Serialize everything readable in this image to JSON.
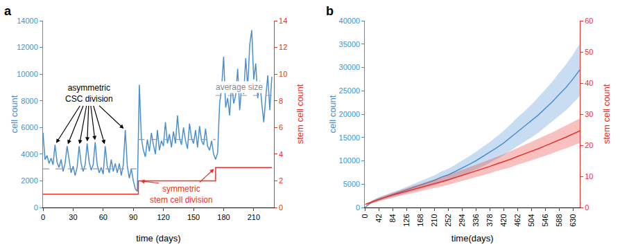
{
  "chart_data": [
    {
      "type": "line",
      "label": "a",
      "xlabel": "time (days)",
      "ylabel": "cell count",
      "y2label": "stem cell count",
      "xlim": [
        0,
        230
      ],
      "ylim": [
        0,
        14000
      ],
      "y2lim": [
        0,
        14
      ],
      "xticks": [
        0,
        30,
        60,
        90,
        120,
        150,
        180,
        210
      ],
      "yticks": [
        0,
        2000,
        4000,
        6000,
        8000,
        10000,
        12000,
        14000
      ],
      "y2ticks": [
        0,
        2,
        4,
        6,
        8,
        10,
        12,
        14
      ],
      "grid": false,
      "series": [
        {
          "axis": "y",
          "color": "#4a8fd0",
          "x": [
            0,
            2,
            4,
            6,
            8,
            10,
            12,
            14,
            16,
            18,
            20,
            22,
            24,
            26,
            28,
            30,
            32,
            34,
            36,
            38,
            40,
            42,
            44,
            46,
            48,
            50,
            52,
            54,
            56,
            58,
            60,
            62,
            64,
            66,
            68,
            70,
            72,
            74,
            76,
            78,
            80,
            82,
            84,
            86,
            88,
            90,
            92,
            94,
            96,
            98,
            100,
            102,
            104,
            106,
            108,
            110,
            112,
            114,
            116,
            118,
            120,
            122,
            124,
            126,
            128,
            130,
            132,
            134,
            136,
            138,
            140,
            142,
            144,
            146,
            148,
            150,
            152,
            154,
            156,
            158,
            160,
            162,
            164,
            166,
            168,
            170,
            172,
            174,
            176,
            178,
            180,
            182,
            184,
            186,
            188,
            190,
            192,
            194,
            196,
            198,
            200,
            202,
            204,
            206,
            208,
            210,
            212,
            214,
            216,
            218,
            220,
            222,
            224,
            226,
            228
          ],
          "values": [
            5600,
            3600,
            3900,
            3300,
            3700,
            3200,
            4700,
            3400,
            3000,
            3600,
            2700,
            3300,
            4600,
            3500,
            2600,
            3100,
            2400,
            3000,
            4600,
            3300,
            2700,
            3200,
            4800,
            3400,
            2800,
            3200,
            4900,
            3200,
            2600,
            3000,
            2500,
            4600,
            3100,
            2600,
            3600,
            2700,
            3300,
            2600,
            3300,
            2400,
            3200,
            5800,
            3100,
            2200,
            2900,
            2000,
            1400,
            1200,
            9200,
            5200,
            4300,
            3800,
            5100,
            4200,
            5600,
            4700,
            4000,
            5800,
            4300,
            5000,
            4600,
            6400,
            4800,
            5500,
            4500,
            5700,
            4800,
            6900,
            5200,
            4700,
            6000,
            5000,
            4400,
            6300,
            5200,
            4800,
            5800,
            4500,
            6100,
            5000,
            4700,
            5900,
            4600,
            4300,
            5000,
            4000,
            3600,
            4100,
            7800,
            9000,
            11300,
            7500,
            8200,
            6900,
            9400,
            7800,
            8400,
            10400,
            7300,
            9200,
            8500,
            11200,
            9000,
            12200,
            13300,
            9600,
            10800,
            8200,
            9500,
            7800,
            6400,
            8300,
            9900,
            7300,
            9800
          ]
        },
        {
          "axis": "y2",
          "color": "#e8312a",
          "line_style": "step",
          "x": [
            0,
            95,
            172,
            228
          ],
          "values": [
            1,
            2,
            3,
            3
          ]
        },
        {
          "axis": "y",
          "color": "#999999",
          "line_style": "dashed",
          "x": [
            0,
            95
          ],
          "values": [
            2900,
            2900
          ]
        },
        {
          "axis": "y",
          "color": "#999999",
          "line_style": "dashed",
          "x": [
            95,
            172
          ],
          "values": [
            5100,
            5100
          ]
        },
        {
          "axis": "y",
          "color": "#999999",
          "line_style": "dashed",
          "x": [
            172,
            228
          ],
          "values": [
            8400,
            8400
          ]
        }
      ],
      "annotations": [
        {
          "text": "asymmetric\nCSC division",
          "color": "#000000",
          "axis": "y",
          "points": [
            [
              12,
              4700
            ],
            [
              24,
              4600
            ],
            [
              36,
              4600
            ],
            [
              44,
              4800
            ],
            [
              52,
              4900
            ],
            [
              62,
              4600
            ],
            [
              82,
              5800
            ]
          ]
        },
        {
          "text": "symmetric\nstem cell division",
          "color": "#e8312a",
          "axis": "y2",
          "points": [
            [
              95,
              2
            ],
            [
              172,
              3
            ]
          ]
        },
        {
          "text": "average size",
          "color": "#888888",
          "axis": "y",
          "points": []
        }
      ]
    },
    {
      "type": "line",
      "label": "b",
      "xlabel": "time(days)",
      "ylabel": "cell count",
      "y2label": "stem cell count",
      "xlim": [
        0,
        651
      ],
      "ylim": [
        0,
        40000
      ],
      "y2lim": [
        0,
        60
      ],
      "xticks": [
        0,
        42,
        84,
        126,
        168,
        210,
        252,
        294,
        336,
        378,
        420,
        462,
        504,
        546,
        588,
        630
      ],
      "yticks": [
        0,
        5000,
        10000,
        15000,
        20000,
        25000,
        30000,
        35000,
        40000
      ],
      "y2ticks": [
        0,
        10,
        20,
        30,
        40,
        50,
        60
      ],
      "grid": false,
      "series": [
        {
          "axis": "y",
          "color": "#4a8fd0",
          "x": [
            0,
            21,
            42,
            63,
            84,
            105,
            126,
            147,
            168,
            189,
            210,
            231,
            252,
            273,
            294,
            315,
            336,
            357,
            378,
            399,
            420,
            441,
            462,
            483,
            504,
            525,
            546,
            567,
            588,
            609,
            630,
            651
          ],
          "values": [
            100,
            1200,
            1800,
            2300,
            2800,
            3200,
            3700,
            4300,
            4700,
            5200,
            5800,
            6500,
            7000,
            7700,
            8400,
            9200,
            10000,
            10900,
            11800,
            12800,
            13800,
            15000,
            16200,
            17300,
            18500,
            19800,
            21200,
            22600,
            24200,
            25700,
            27500,
            29500
          ],
          "lower": [
            0,
            900,
            1400,
            1800,
            2300,
            2600,
            3000,
            3500,
            3800,
            4200,
            4700,
            5300,
            5700,
            6300,
            6800,
            7500,
            8100,
            8800,
            9600,
            10400,
            11200,
            12200,
            13100,
            14000,
            15000,
            16000,
            17200,
            18300,
            19600,
            20800,
            22300,
            23900
          ],
          "upper": [
            200,
            1500,
            2200,
            2800,
            3300,
            3800,
            4400,
            5100,
            5600,
            6200,
            6900,
            7700,
            8300,
            9100,
            10000,
            10900,
            11900,
            13000,
            14000,
            15200,
            16400,
            17800,
            19300,
            20600,
            22000,
            23600,
            25200,
            26900,
            28800,
            30600,
            32700,
            35100
          ]
        },
        {
          "axis": "y2",
          "color": "#e8312a",
          "x": [
            0,
            21,
            42,
            63,
            84,
            105,
            126,
            147,
            168,
            189,
            210,
            231,
            252,
            273,
            294,
            315,
            336,
            357,
            378,
            399,
            420,
            441,
            462,
            483,
            504,
            525,
            546,
            567,
            588,
            609,
            630,
            651
          ],
          "values": [
            1,
            1.8,
            2.6,
            3.3,
            4,
            4.6,
            5.2,
            5.9,
            6.4,
            7,
            7.6,
            8.3,
            8.9,
            9.6,
            10.3,
            11,
            11.7,
            12.4,
            13.2,
            14,
            14.7,
            15.5,
            16.4,
            17.2,
            18,
            18.9,
            19.8,
            20.7,
            21.7,
            22.6,
            23.6,
            24.6
          ],
          "lower": [
            1,
            1.3,
            2,
            2.6,
            3.2,
            3.7,
            4.2,
            4.8,
            5.2,
            5.7,
            6.2,
            6.8,
            7.3,
            7.9,
            8.5,
            9.1,
            9.7,
            10.3,
            11,
            11.7,
            12.3,
            12.9,
            13.7,
            14.4,
            15.1,
            15.9,
            16.6,
            17.4,
            18.3,
            19,
            19.9,
            20.7
          ],
          "upper": [
            1,
            2.3,
            3.2,
            4,
            4.8,
            5.5,
            6.2,
            7,
            7.6,
            8.3,
            9,
            9.8,
            10.5,
            11.3,
            12.1,
            12.9,
            13.7,
            14.5,
            15.4,
            16.3,
            17.1,
            18.1,
            19.1,
            20,
            21,
            22,
            23,
            24.1,
            25.2,
            26.3,
            27.4,
            28.6
          ]
        }
      ]
    }
  ]
}
